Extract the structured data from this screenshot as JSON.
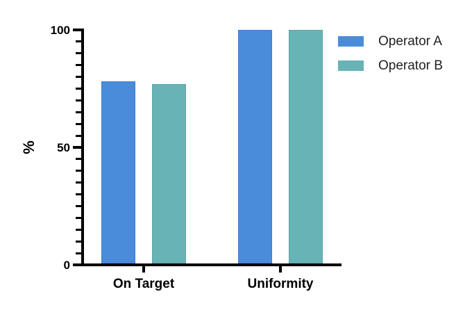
{
  "chart_data": {
    "type": "bar",
    "title": "",
    "xlabel": "",
    "ylabel": "%",
    "categories": [
      "On Target",
      "Uniformity"
    ],
    "series": [
      {
        "name": "Operator A",
        "color": "#4A8CD9",
        "border_color": "#3F7ECB",
        "values": [
          78,
          100
        ]
      },
      {
        "name": "Operator B",
        "color": "#67B3B5",
        "border_color": "#58A6A8",
        "values": [
          77,
          100
        ]
      }
    ],
    "ylim": [
      0,
      100
    ],
    "yticks_major": [
      0,
      50,
      100
    ],
    "ytick_minor_step": 5,
    "grid": false,
    "legend_position": "top-right",
    "axis_color": "#000000"
  }
}
